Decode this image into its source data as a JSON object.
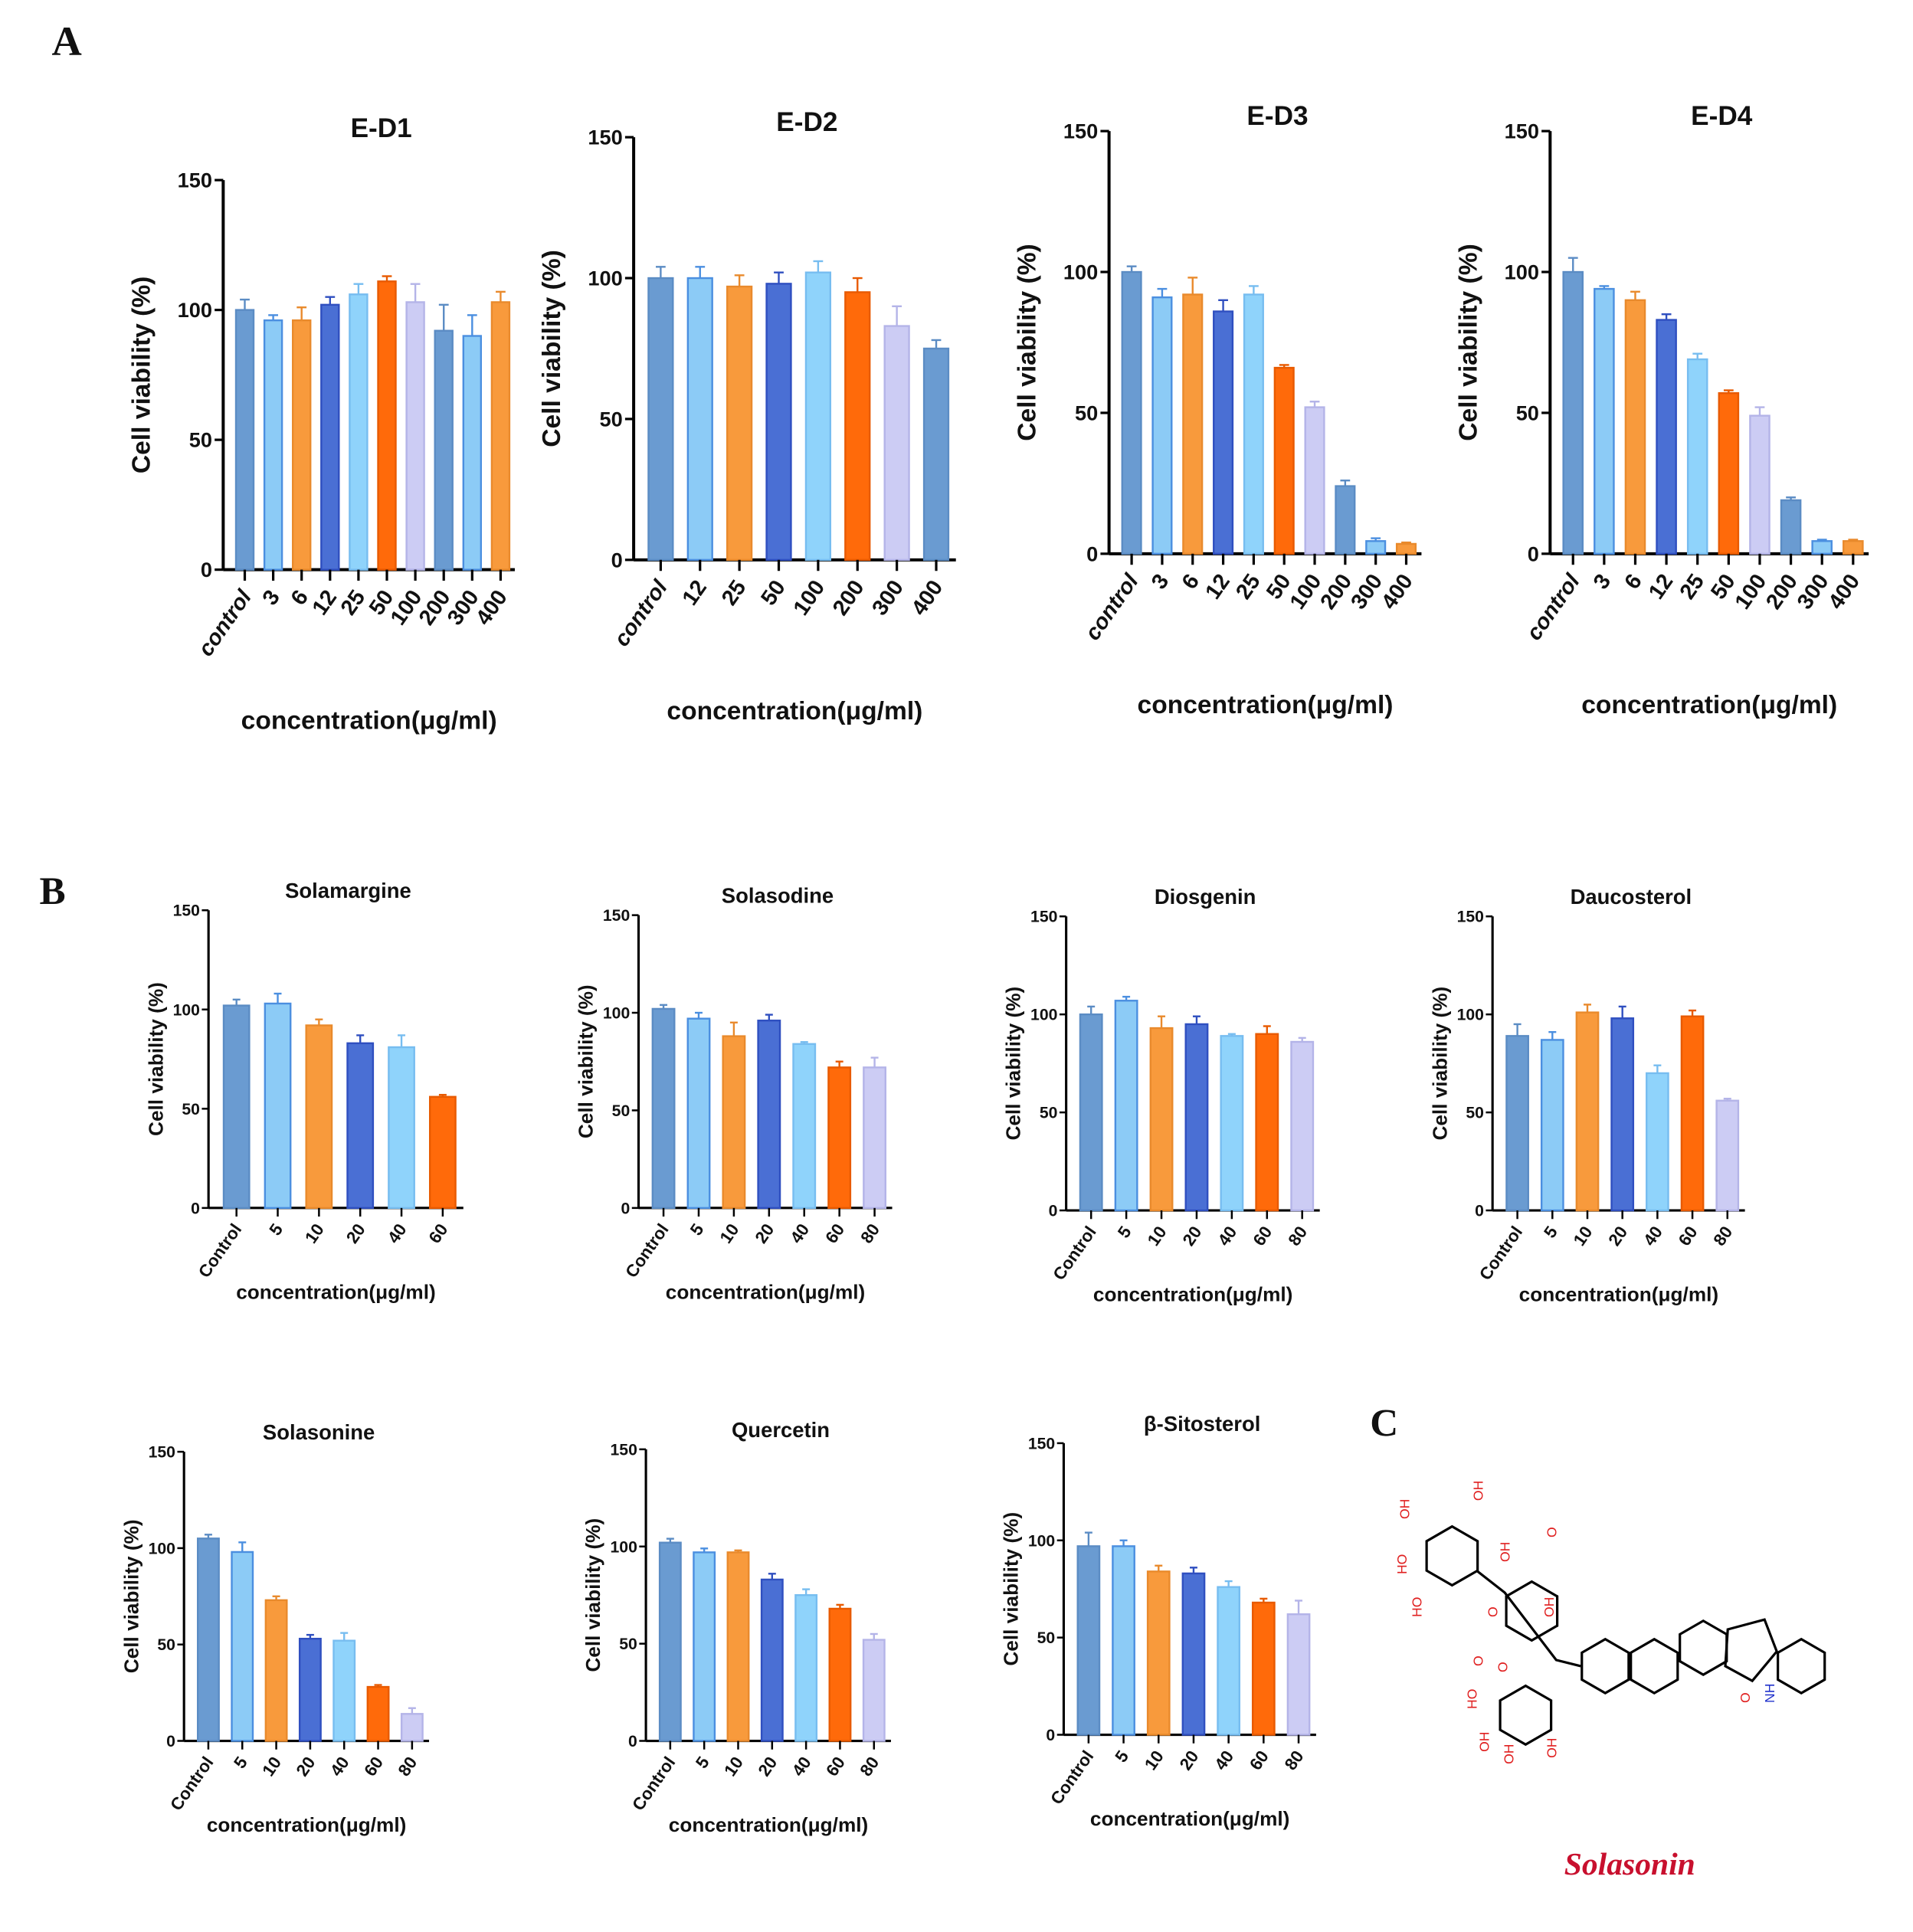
{
  "panels": {
    "a": "A",
    "b": "B",
    "c": "C"
  },
  "colors": [
    "#6a9bd1",
    "#8ccbf6",
    "#f89a3c",
    "#4a6fd4",
    "#8fd3fb",
    "#ff6a0a",
    "#ccccf4"
  ],
  "edge_colors": [
    "#5b8cc4",
    "#4b8fe0",
    "#e98a2c",
    "#2f4fc0",
    "#77bdf0",
    "#e85a00",
    "#b4b4e8"
  ],
  "chart_data": [
    {
      "type": "bar",
      "title": "E-D1",
      "xlabel": "concentration(μg/ml)",
      "ylabel": "Cell viability (%)",
      "ylim": [
        0,
        150
      ],
      "yticks": [
        0,
        50,
        100,
        150
      ],
      "categories": [
        "control",
        "3",
        "6",
        "12",
        "25",
        "50",
        "100",
        "200",
        "300",
        "400"
      ],
      "values": [
        100,
        96,
        96,
        102,
        106,
        111,
        103,
        92,
        90,
        103
      ],
      "errors": [
        4,
        2,
        5,
        3,
        4,
        2,
        7,
        10,
        8,
        4
      ]
    },
    {
      "type": "bar",
      "title": "E-D2",
      "xlabel": "concentration(μg/ml)",
      "ylabel": "Cell viability (%)",
      "ylim": [
        0,
        150
      ],
      "yticks": [
        0,
        50,
        100,
        150
      ],
      "categories": [
        "control",
        "12",
        "25",
        "50",
        "100",
        "200",
        "300",
        "400"
      ],
      "values": [
        100,
        100,
        97,
        98,
        102,
        95,
        83,
        75
      ],
      "errors": [
        4,
        4,
        4,
        4,
        4,
        5,
        7,
        3
      ]
    },
    {
      "type": "bar",
      "title": "E-D3",
      "xlabel": "concentration(μg/ml)",
      "ylabel": "Cell viability (%)",
      "ylim": [
        0,
        150
      ],
      "yticks": [
        0,
        50,
        100,
        150
      ],
      "categories": [
        "control",
        "3",
        "6",
        "12",
        "25",
        "50",
        "100",
        "200",
        "300",
        "400"
      ],
      "values": [
        100,
        91,
        92,
        86,
        92,
        66,
        52,
        24,
        4.5,
        3.5
      ],
      "errors": [
        2,
        3,
        6,
        4,
        3,
        1,
        2,
        2,
        1,
        0.5
      ]
    },
    {
      "type": "bar",
      "title": "E-D4",
      "xlabel": "concentration(μg/ml)",
      "ylabel": "Cell viability (%)",
      "ylim": [
        0,
        150
      ],
      "yticks": [
        0,
        50,
        100,
        150
      ],
      "categories": [
        "control",
        "3",
        "6",
        "12",
        "25",
        "50",
        "100",
        "200",
        "300",
        "400"
      ],
      "values": [
        100,
        94,
        90,
        83,
        69,
        57,
        49,
        19,
        4.5,
        4.5
      ],
      "errors": [
        5,
        1,
        3,
        2,
        2,
        1,
        3,
        1,
        0.5,
        0.5
      ]
    },
    {
      "type": "bar",
      "title": "Solamargine",
      "xlabel": "concentration(μg/ml)",
      "ylabel": "Cell viability (%)",
      "ylim": [
        0,
        150
      ],
      "yticks": [
        0,
        50,
        100,
        150
      ],
      "categories": [
        "Control",
        "5",
        "10",
        "20",
        "40",
        "60"
      ],
      "values": [
        102,
        103,
        92,
        83,
        81,
        56
      ],
      "errors": [
        3,
        5,
        3,
        4,
        6,
        1
      ]
    },
    {
      "type": "bar",
      "title": "Solasodine",
      "xlabel": "concentration(μg/ml)",
      "ylabel": "Cell viability (%)",
      "ylim": [
        0,
        150
      ],
      "yticks": [
        0,
        50,
        100,
        150
      ],
      "categories": [
        "Control",
        "5",
        "10",
        "20",
        "40",
        "60",
        "80"
      ],
      "values": [
        102,
        97,
        88,
        96,
        84,
        72,
        72
      ],
      "errors": [
        2,
        3,
        7,
        3,
        1,
        3,
        5
      ]
    },
    {
      "type": "bar",
      "title": "Diosgenin",
      "xlabel": "concentration(μg/ml)",
      "ylabel": "Cell viability (%)",
      "ylim": [
        0,
        150
      ],
      "yticks": [
        0,
        50,
        100,
        150
      ],
      "categories": [
        "Control",
        "5",
        "10",
        "20",
        "40",
        "60",
        "80"
      ],
      "values": [
        100,
        107,
        93,
        95,
        89,
        90,
        86
      ],
      "errors": [
        4,
        2,
        6,
        4,
        1,
        4,
        2
      ]
    },
    {
      "type": "bar",
      "title": "Daucosterol",
      "xlabel": "concentration(μg/ml)",
      "ylabel": "Cell viability (%)",
      "ylim": [
        0,
        150
      ],
      "yticks": [
        0,
        50,
        100,
        150
      ],
      "categories": [
        "Control",
        "5",
        "10",
        "20",
        "40",
        "60",
        "80"
      ],
      "values": [
        89,
        87,
        101,
        98,
        70,
        99,
        56
      ],
      "errors": [
        6,
        4,
        4,
        6,
        4,
        3,
        1
      ]
    },
    {
      "type": "bar",
      "title": "Solasonine",
      "xlabel": "concentration(μg/ml)",
      "ylabel": "Cell viability (%)",
      "ylim": [
        0,
        150
      ],
      "yticks": [
        0,
        50,
        100,
        150
      ],
      "categories": [
        "Control",
        "5",
        "10",
        "20",
        "40",
        "60",
        "80"
      ],
      "values": [
        105,
        98,
        73,
        53,
        52,
        28,
        14
      ],
      "errors": [
        2,
        5,
        2,
        2,
        4,
        1,
        3
      ]
    },
    {
      "type": "bar",
      "title": "Quercetin",
      "xlabel": "concentration(μg/ml)",
      "ylabel": "Cell viability (%)",
      "ylim": [
        0,
        150
      ],
      "yticks": [
        0,
        50,
        100,
        150
      ],
      "categories": [
        "Control",
        "5",
        "10",
        "20",
        "40",
        "60",
        "80"
      ],
      "values": [
        102,
        97,
        97,
        83,
        75,
        68,
        52
      ],
      "errors": [
        2,
        2,
        1,
        3,
        3,
        2,
        3
      ]
    },
    {
      "type": "bar",
      "title": "β-Sitosterol",
      "xlabel": "concentration(μg/ml)",
      "ylabel": "Cell viability (%)",
      "ylim": [
        0,
        150
      ],
      "yticks": [
        0,
        50,
        100,
        150
      ],
      "categories": [
        "Control",
        "5",
        "10",
        "20",
        "40",
        "60",
        "80"
      ],
      "values": [
        97,
        97,
        84,
        83,
        76,
        68,
        62
      ],
      "errors": [
        7,
        3,
        3,
        3,
        3,
        2,
        7
      ]
    }
  ],
  "structure": {
    "name": "Solasonin",
    "atom_labels": [
      "OH",
      "OH",
      "HO",
      "HO",
      "OH",
      "O",
      "O",
      "OH",
      "OH",
      "HO",
      "OH",
      "OH",
      "O",
      "O",
      "O",
      "NH"
    ]
  }
}
